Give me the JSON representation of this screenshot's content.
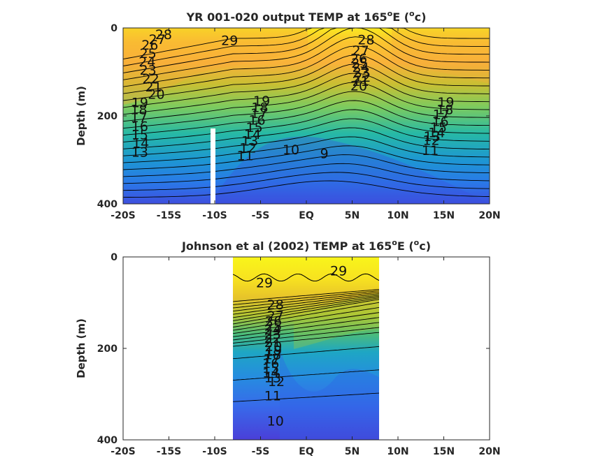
{
  "chart_data": [
    {
      "type": "contour",
      "title": "YR 001-020 output TEMP at 165",
      "title_sup": "o",
      "title_tail": "E (",
      "title_unit_sup": "o",
      "title_unit": "c)",
      "ylabel": "Depth (m)",
      "xlabel": "",
      "x_ticks": [
        "-20S",
        "-15S",
        "-10S",
        "-5S",
        "EQ",
        "5N",
        "10N",
        "15N",
        "20N"
      ],
      "x_tick_values": [
        -20,
        -15,
        -10,
        -5,
        0,
        5,
        10,
        15,
        20
      ],
      "y_ticks": [
        "0",
        "200",
        "400"
      ],
      "y_tick_values": [
        0,
        200,
        400
      ],
      "xlim": [
        -20,
        20
      ],
      "ylim": [
        400,
        0
      ],
      "data_extent": {
        "lat": [
          -20,
          20
        ],
        "depth": [
          0,
          390
        ]
      },
      "gap_latitude": -10,
      "colormap": "parula",
      "contour_levels": [
        9,
        10,
        11,
        12,
        13,
        14,
        15,
        16,
        17,
        18,
        19,
        20,
        21,
        22,
        23,
        24,
        25,
        26,
        27,
        28,
        29
      ],
      "contour_labels": [
        {
          "text": "28",
          "lat": -16.5,
          "depth": 14
        },
        {
          "text": "27",
          "lat": -17.2,
          "depth": 25
        },
        {
          "text": "26",
          "lat": -18.0,
          "depth": 38
        },
        {
          "text": "25",
          "lat": -18.2,
          "depth": 57
        },
        {
          "text": "24",
          "lat": -18.3,
          "depth": 76
        },
        {
          "text": "23",
          "lat": -18.2,
          "depth": 95
        },
        {
          "text": "22",
          "lat": -17.9,
          "depth": 115
        },
        {
          "text": "21",
          "lat": -17.6,
          "depth": 133
        },
        {
          "text": "20",
          "lat": -17.3,
          "depth": 150
        },
        {
          "text": "19",
          "lat": -19.1,
          "depth": 169
        },
        {
          "text": "18",
          "lat": -19.2,
          "depth": 185
        },
        {
          "text": "17",
          "lat": -19.2,
          "depth": 203
        },
        {
          "text": "16",
          "lat": -19.1,
          "depth": 223
        },
        {
          "text": "15",
          "lat": -19.1,
          "depth": 242
        },
        {
          "text": "14",
          "lat": -19.0,
          "depth": 261
        },
        {
          "text": "13",
          "lat": -19.1,
          "depth": 282
        },
        {
          "text": "29",
          "lat": -9.3,
          "depth": 28
        },
        {
          "text": "28",
          "lat": 5.6,
          "depth": 26
        },
        {
          "text": "27",
          "lat": 5.0,
          "depth": 51
        },
        {
          "text": "26",
          "lat": 4.8,
          "depth": 69
        },
        {
          "text": "25",
          "lat": 4.9,
          "depth": 79
        },
        {
          "text": "24",
          "lat": 5.0,
          "depth": 89
        },
        {
          "text": "23",
          "lat": 5.1,
          "depth": 100
        },
        {
          "text": "22",
          "lat": 5.2,
          "depth": 111
        },
        {
          "text": "21",
          "lat": 5.0,
          "depth": 121
        },
        {
          "text": "20",
          "lat": 4.8,
          "depth": 131
        },
        {
          "text": "19",
          "lat": -5.8,
          "depth": 165
        },
        {
          "text": "18",
          "lat": -6.0,
          "depth": 180
        },
        {
          "text": "17",
          "lat": -6.1,
          "depth": 194
        },
        {
          "text": "16",
          "lat": -6.3,
          "depth": 209
        },
        {
          "text": "15",
          "lat": -6.6,
          "depth": 225
        },
        {
          "text": "14",
          "lat": -6.8,
          "depth": 241
        },
        {
          "text": "13",
          "lat": -7.1,
          "depth": 256
        },
        {
          "text": "12",
          "lat": -7.3,
          "depth": 272
        },
        {
          "text": "11",
          "lat": -7.6,
          "depth": 290
        },
        {
          "text": "10",
          "lat": -2.6,
          "depth": 276
        },
        {
          "text": "9",
          "lat": 1.5,
          "depth": 285
        },
        {
          "text": "19",
          "lat": 14.3,
          "depth": 168
        },
        {
          "text": "18",
          "lat": 14.2,
          "depth": 185
        },
        {
          "text": "17",
          "lat": 13.8,
          "depth": 196
        },
        {
          "text": "16",
          "lat": 13.7,
          "depth": 212
        },
        {
          "text": "15",
          "lat": 13.5,
          "depth": 225
        },
        {
          "text": "14",
          "lat": 13.3,
          "depth": 237
        },
        {
          "text": "13",
          "lat": 12.8,
          "depth": 246
        },
        {
          "text": "12",
          "lat": 12.7,
          "depth": 255
        },
        {
          "text": "11",
          "lat": 12.6,
          "depth": 278
        }
      ]
    },
    {
      "type": "contour",
      "title": "Johnson et al (2002) TEMP at 165",
      "title_sup": "o",
      "title_tail": "E (",
      "title_unit_sup": "o",
      "title_unit": "c)",
      "ylabel": "Depth (m)",
      "xlabel": "",
      "x_ticks": [
        "-20S",
        "-15S",
        "-10S",
        "-5S",
        "EQ",
        "5N",
        "10N",
        "15N",
        "20N"
      ],
      "x_tick_values": [
        -20,
        -15,
        -10,
        -5,
        0,
        5,
        10,
        15,
        20
      ],
      "y_ticks": [
        "0",
        "200",
        "400"
      ],
      "y_tick_values": [
        0,
        200,
        400
      ],
      "xlim": [
        -20,
        20
      ],
      "ylim": [
        400,
        0
      ],
      "data_extent": {
        "lat": [
          -8,
          8
        ],
        "depth": [
          0,
          400
        ]
      },
      "colormap": "parula",
      "contour_levels": [
        10,
        11,
        12,
        13,
        14,
        15,
        16,
        17,
        18,
        19,
        20,
        21,
        22,
        23,
        24,
        25,
        26,
        27,
        28,
        29
      ],
      "contour_labels": [
        {
          "text": "29",
          "lat": -5.5,
          "depth": 56
        },
        {
          "text": "29",
          "lat": 2.6,
          "depth": 30
        },
        {
          "text": "28",
          "lat": -4.3,
          "depth": 104
        },
        {
          "text": "27",
          "lat": -4.3,
          "depth": 128
        },
        {
          "text": "26",
          "lat": -4.5,
          "depth": 140
        },
        {
          "text": "25",
          "lat": -4.5,
          "depth": 150
        },
        {
          "text": "24",
          "lat": -4.6,
          "depth": 159
        },
        {
          "text": "23",
          "lat": -4.6,
          "depth": 168
        },
        {
          "text": "22",
          "lat": -4.6,
          "depth": 177
        },
        {
          "text": "21",
          "lat": -4.6,
          "depth": 186
        },
        {
          "text": "20",
          "lat": -4.5,
          "depth": 195
        },
        {
          "text": "19",
          "lat": -4.5,
          "depth": 204
        },
        {
          "text": "18",
          "lat": -4.6,
          "depth": 213
        },
        {
          "text": "17",
          "lat": -4.7,
          "depth": 222
        },
        {
          "text": "16",
          "lat": -4.8,
          "depth": 232
        },
        {
          "text": "15",
          "lat": -4.8,
          "depth": 243
        },
        {
          "text": "14",
          "lat": -4.8,
          "depth": 253
        },
        {
          "text": "13",
          "lat": -4.6,
          "depth": 263
        },
        {
          "text": "12",
          "lat": -4.2,
          "depth": 272
        },
        {
          "text": "11",
          "lat": -4.6,
          "depth": 303
        },
        {
          "text": "10",
          "lat": -4.3,
          "depth": 358
        }
      ]
    }
  ]
}
